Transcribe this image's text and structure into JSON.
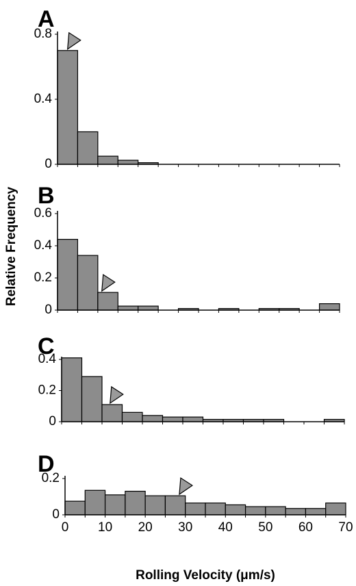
{
  "ylabel": "Relative Frequency",
  "xlabel": "Rolling Velocity (μm/s)",
  "colors": {
    "bar_fill": "#8c8c8c",
    "bar_stroke": "#000000",
    "marker_fill": "#9a9a9a"
  },
  "chart_data": [
    {
      "type": "bar",
      "panel": "A",
      "bin_width": 5,
      "bin_starts": [
        0,
        5,
        10,
        15,
        20
      ],
      "values": [
        0.7,
        0.2,
        0.05,
        0.025,
        0.01
      ],
      "ylim": [
        0,
        0.8
      ],
      "yticks": [
        0,
        0.4,
        0.8
      ],
      "ytick_labels": [
        "0",
        "0.4",
        "0.8"
      ],
      "xlim": [
        0,
        70
      ],
      "marker_x": 2.5
    },
    {
      "type": "bar",
      "panel": "B",
      "bin_width": 5,
      "bin_starts": [
        0,
        5,
        10,
        15,
        20,
        30,
        40,
        50,
        55,
        65
      ],
      "values": [
        0.44,
        0.34,
        0.11,
        0.025,
        0.025,
        0.01,
        0.01,
        0.01,
        0.01,
        0.04
      ],
      "ylim": [
        0,
        0.6
      ],
      "yticks": [
        0,
        0.2,
        0.4,
        0.6
      ],
      "ytick_labels": [
        "0",
        "0.2",
        "0.4",
        "0.6"
      ],
      "xlim": [
        0,
        70
      ],
      "marker_x": 11
    },
    {
      "type": "bar",
      "panel": "C",
      "bin_width": 5,
      "bin_starts": [
        0,
        5,
        10,
        15,
        20,
        25,
        30,
        35,
        40,
        45,
        50,
        65
      ],
      "values": [
        0.41,
        0.29,
        0.11,
        0.06,
        0.04,
        0.03,
        0.03,
        0.015,
        0.015,
        0.015,
        0.015,
        0.015
      ],
      "ylim": [
        0,
        0.4
      ],
      "yticks": [
        0,
        0.2,
        0.4
      ],
      "ytick_labels": [
        "0",
        "0.2",
        "0.4"
      ],
      "xlim": [
        0,
        70
      ],
      "marker_x": 12
    },
    {
      "type": "bar",
      "panel": "D",
      "bin_width": 5,
      "bin_starts": [
        0,
        5,
        10,
        15,
        20,
        25,
        30,
        35,
        40,
        45,
        50,
        55,
        60,
        65
      ],
      "values": [
        0.075,
        0.135,
        0.11,
        0.13,
        0.105,
        0.105,
        0.065,
        0.065,
        0.055,
        0.045,
        0.045,
        0.035,
        0.035,
        0.065
      ],
      "ylim": [
        0,
        0.2
      ],
      "yticks": [
        0,
        0.2
      ],
      "ytick_labels": [
        "0",
        "0.2"
      ],
      "xlim": [
        0,
        70
      ],
      "xticks": [
        0,
        10,
        20,
        30,
        40,
        50,
        60,
        70
      ],
      "xtick_labels": [
        "0",
        "10",
        "20",
        "30",
        "40",
        "50",
        "60",
        "70"
      ],
      "marker_x": 28.5
    }
  ]
}
